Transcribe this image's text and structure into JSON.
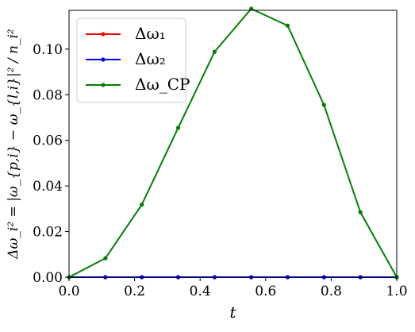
{
  "chart_data": {
    "type": "line",
    "xlabel": "t",
    "ylabel": "Δω_i² = |ω_{p,i} − ω_{l,i}|² / n_i²",
    "xlim": [
      0.0,
      1.0
    ],
    "ylim": [
      0.0,
      0.117
    ],
    "xticks": [
      "0.0",
      "0.2",
      "0.4",
      "0.6",
      "0.8",
      "1.0"
    ],
    "yticks": [
      "0.00",
      "0.02",
      "0.04",
      "0.06",
      "0.08",
      "0.10"
    ],
    "x": [
      0.0,
      0.111,
      0.222,
      0.333,
      0.444,
      0.556,
      0.667,
      0.778,
      0.889,
      1.0
    ],
    "series": [
      {
        "name": "Δω₁",
        "color": "#ff0000",
        "values": [
          0,
          0,
          0,
          0,
          0,
          0,
          0,
          0,
          0,
          0
        ]
      },
      {
        "name": "Δω₂",
        "color": "#0000ff",
        "values": [
          0,
          0,
          0,
          0,
          0,
          0,
          0,
          0,
          0,
          0
        ]
      },
      {
        "name": "Δω_CP",
        "color": "#008000",
        "values": [
          0.0,
          0.0083,
          0.0318,
          0.0655,
          0.0988,
          0.1177,
          0.1103,
          0.0755,
          0.0285,
          0.0
        ]
      }
    ],
    "legend_position": "top-left",
    "grid": false
  }
}
